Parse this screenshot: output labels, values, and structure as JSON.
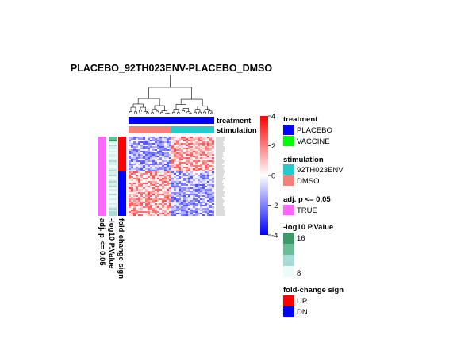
{
  "chart_data": {
    "type": "heatmap",
    "title": "PLACEBO_92TH023ENV-PLACEBO_DMSO",
    "column_annotation_labels": [
      "treatment",
      "stimulation"
    ],
    "row_annotation_labels": [
      "adj. p <= 0.05",
      "-log10 P.Value",
      "fold-change sign"
    ],
    "color_scale": {
      "ticks": [
        4,
        2,
        0,
        -2,
        -4
      ],
      "low": "#0000ff",
      "mid": "#ffffff",
      "high": "#ff0000"
    },
    "legends": [
      {
        "title": "treatment",
        "items": [
          {
            "label": "PLACEBO",
            "color": "#0000ff"
          },
          {
            "label": "VACCINE",
            "color": "#00ff00"
          }
        ]
      },
      {
        "title": "stimulation",
        "items": [
          {
            "label": "92TH023ENV",
            "color": "#22cccc"
          },
          {
            "label": "DMSO",
            "color": "#f4807a"
          }
        ]
      },
      {
        "title": "adj. p <= 0.05",
        "items": [
          {
            "label": "TRUE",
            "color": "#ff66ff"
          }
        ]
      },
      {
        "title": "-log10 P.Value",
        "gradient": [
          "#3a9a6a",
          "#6bbd97",
          "#a8ddd5",
          "#eef9f9"
        ],
        "ticks": [
          "16",
          "8"
        ]
      },
      {
        "title": "fold-change sign",
        "items": [
          {
            "label": "UP",
            "color": "#ff0000"
          },
          {
            "label": "DN",
            "color": "#0000ff"
          }
        ]
      }
    ]
  }
}
